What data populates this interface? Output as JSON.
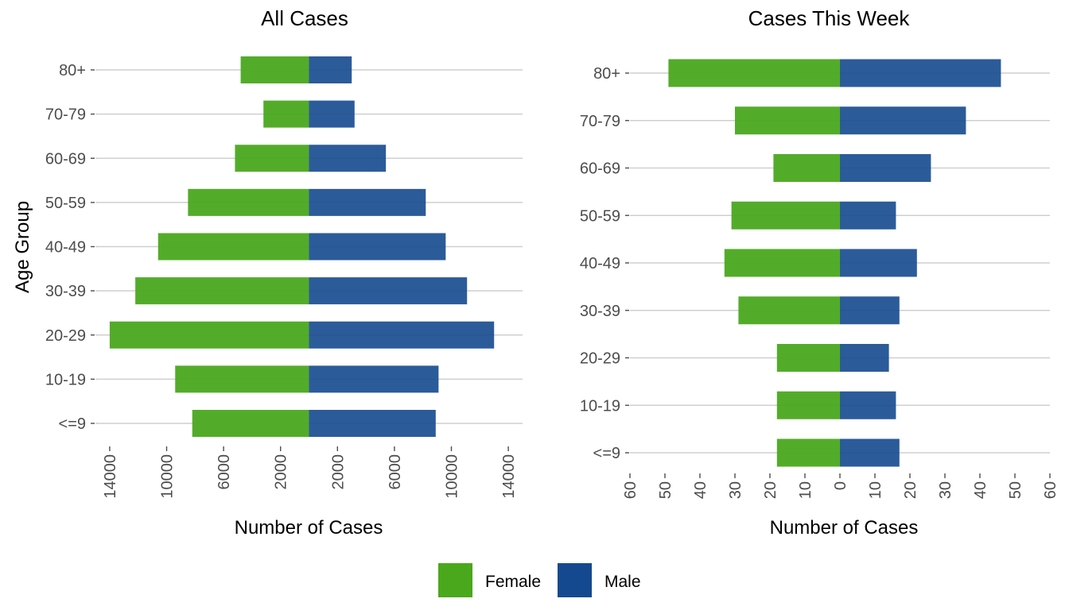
{
  "colors": {
    "female": "#4aa81d",
    "male": "#15498f",
    "grid": "#cfcfcf",
    "tick": "#4d4d4d"
  },
  "y_axis_label": "Age Group",
  "legend": {
    "position": "bottom",
    "items": [
      {
        "label": "Female",
        "color": "#4aa81d"
      },
      {
        "label": "Male",
        "color": "#15498f"
      }
    ]
  },
  "chart_data": [
    {
      "type": "bar",
      "orientation": "horizontal",
      "layout": "population-pyramid",
      "title": "All Cases",
      "xlabel": "Number of Cases",
      "ylabel": "Age Group",
      "categories": [
        "<=9",
        "10-19",
        "20-29",
        "30-39",
        "40-49",
        "50-59",
        "60-69",
        "70-79",
        "80+"
      ],
      "xticks": [
        "14000",
        "10000",
        "6000",
        "2000",
        "2000",
        "6000",
        "10000",
        "14000"
      ],
      "xlim": [
        -15000,
        15000
      ],
      "grid": true,
      "series": [
        {
          "name": "Female",
          "values": [
            8200,
            9400,
            14000,
            12200,
            10600,
            8500,
            5200,
            3200,
            4800
          ]
        },
        {
          "name": "Male",
          "values": [
            8900,
            9100,
            13000,
            11100,
            9600,
            8200,
            5400,
            3200,
            3000
          ]
        }
      ]
    },
    {
      "type": "bar",
      "orientation": "horizontal",
      "layout": "population-pyramid",
      "title": "Cases This Week",
      "xlabel": "Number of Cases",
      "ylabel": "",
      "categories": [
        "<=9",
        "10-19",
        "20-29",
        "30-39",
        "40-49",
        "50-59",
        "60-69",
        "70-79",
        "80+"
      ],
      "xticks": [
        "60",
        "50",
        "40",
        "30",
        "20",
        "10",
        "0",
        "10",
        "20",
        "30",
        "40",
        "50",
        "60"
      ],
      "xlim": [
        -60,
        60
      ],
      "grid": true,
      "series": [
        {
          "name": "Female",
          "values": [
            18,
            18,
            18,
            29,
            33,
            31,
            19,
            30,
            49
          ]
        },
        {
          "name": "Male",
          "values": [
            17,
            16,
            14,
            17,
            22,
            16,
            26,
            36,
            46
          ]
        }
      ]
    }
  ]
}
